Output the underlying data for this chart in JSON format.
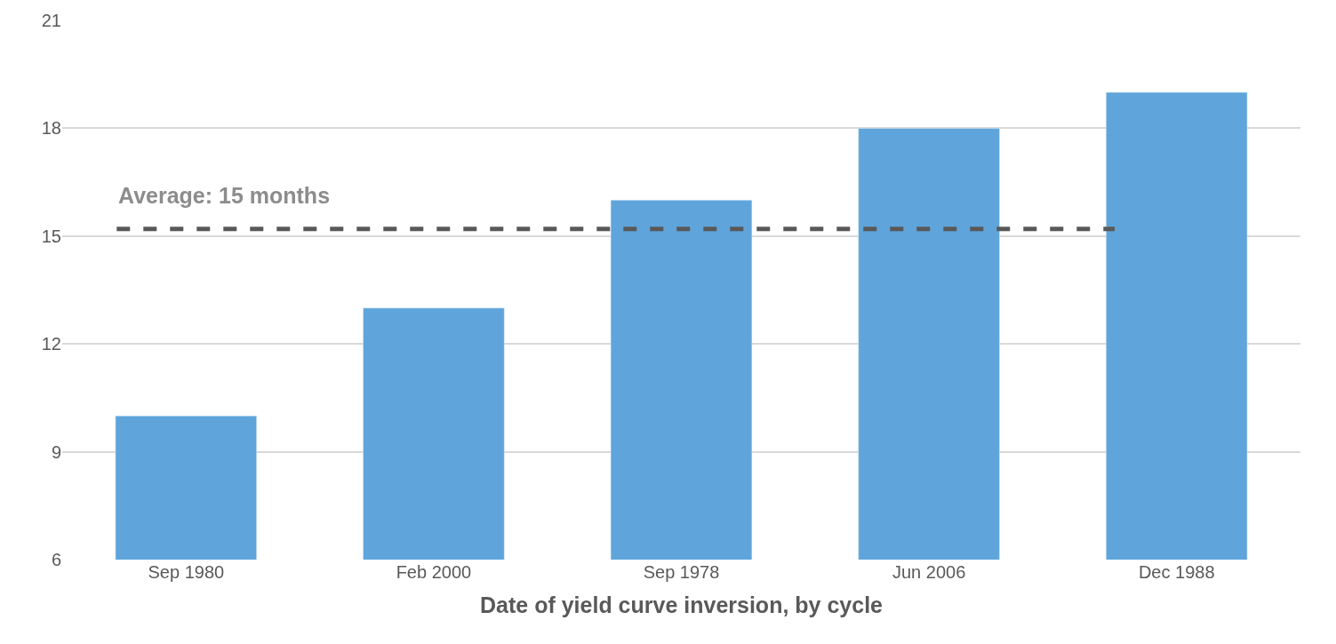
{
  "chart_data": {
    "type": "bar",
    "xlabel": "Date of yield curve inversion, by cycle",
    "categories": [
      "Sep 1980",
      "Feb 2000",
      "Sep 1978",
      "Jun 2006",
      "Dec 1988"
    ],
    "values": [
      10,
      13,
      16,
      18,
      19
    ],
    "color": "#5fa5db",
    "ylim": [
      6,
      21
    ],
    "yticks": [
      6,
      9,
      12,
      15,
      18,
      21
    ],
    "grid": "y",
    "ref_lines": [
      {
        "axis": "y",
        "value": 15.2,
        "label": "Average: 15 months",
        "color": "#595959",
        "line_style": "dashed"
      }
    ]
  }
}
